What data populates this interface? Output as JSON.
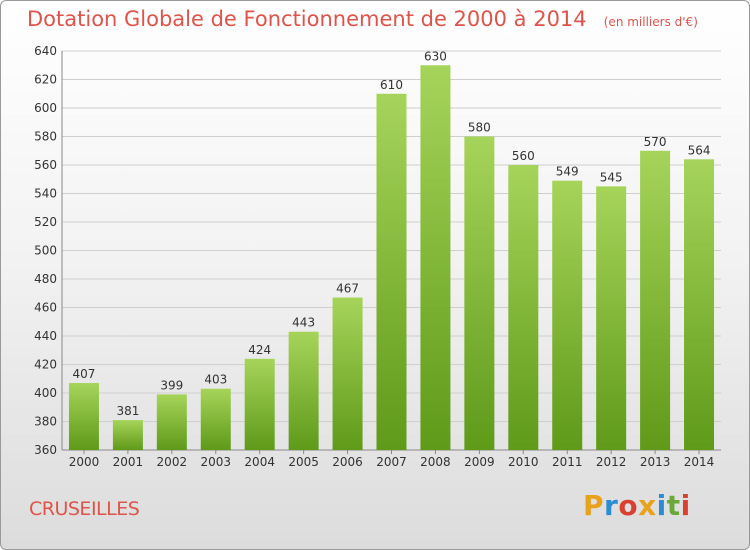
{
  "title": "Dotation Globale de Fonctionnement de 2000 à 2014",
  "unit": "(en milliers d'€)",
  "commune": "CRUSEILLES",
  "brand": {
    "letters": [
      "P",
      "r",
      "o",
      "x",
      "i",
      "t",
      "i"
    ],
    "colors": [
      "#e8a21c",
      "#2d8bcf",
      "#d9402f",
      "#e8a21c",
      "#2d8bcf",
      "#6aa83a",
      "#d9402f"
    ]
  },
  "colors": {
    "bar_light": "#a6d45a",
    "bar_dark": "#5f9a19",
    "grid": "#cfcfcf",
    "title": "#e0534a"
  },
  "chart_data": {
    "type": "bar",
    "categories": [
      "2000",
      "2001",
      "2002",
      "2003",
      "2004",
      "2005",
      "2006",
      "2007",
      "2008",
      "2009",
      "2010",
      "2011",
      "2012",
      "2013",
      "2014"
    ],
    "values": [
      407,
      381,
      399,
      403,
      424,
      443,
      467,
      610,
      630,
      580,
      560,
      549,
      545,
      570,
      564
    ],
    "ylim": [
      360,
      640
    ],
    "yticks": [
      360,
      380,
      400,
      420,
      440,
      460,
      480,
      500,
      520,
      540,
      560,
      580,
      600,
      620,
      640
    ],
    "grid": true,
    "legend": "none"
  }
}
